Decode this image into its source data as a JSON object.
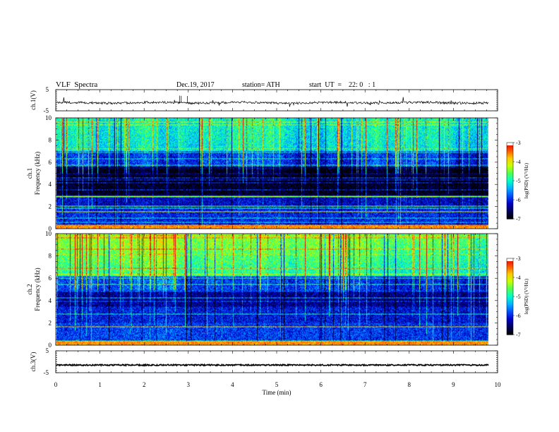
{
  "header": {
    "title": "VLF  Spectra",
    "date": "Dec.19, 2017",
    "station": "station= ATH",
    "start": "start  UT  =    22: 0   : 1"
  },
  "chart_data": {
    "type": "heatmap",
    "x_label": "Time  (min)",
    "x_range": [
      0,
      10
    ],
    "x_ticks": [
      "0",
      "1",
      "2",
      "3",
      "4",
      "5",
      "6",
      "7",
      "8",
      "9",
      "10"
    ],
    "data_end_min": 9.8,
    "panels": [
      {
        "id": "ch1-voltage",
        "kind": "line",
        "ylabel": "ch.1(V)",
        "ylim": [
          -5,
          5
        ],
        "y_ticks": [
          "5",
          "-5"
        ],
        "baseline_v": -1.2,
        "line_color": "#000000"
      },
      {
        "id": "ch1-spectrogram",
        "kind": "spectrogram",
        "ylabel_1": "ch.1",
        "ylabel_2": "Frequency  (kHz)",
        "ylim": [
          0,
          10
        ],
        "y_ticks": [
          "0",
          "2",
          "4",
          "6",
          "8",
          "10"
        ],
        "colorbar": {
          "range": [
            -7,
            -3
          ],
          "ticks": [
            "-3",
            "-4",
            "-5",
            "-6",
            "-7"
          ],
          "label": "log(PSD) (V²/Hz)"
        }
      },
      {
        "id": "ch2-spectrogram",
        "kind": "spectrogram",
        "ylabel_1": "ch.2",
        "ylabel_2": "Frequency  (kHz)",
        "ylim": [
          0,
          10
        ],
        "y_ticks": [
          "0",
          "2",
          "4",
          "6",
          "8",
          "10"
        ],
        "colorbar": {
          "range": [
            -7,
            -3
          ],
          "ticks": [
            "-3",
            "-4",
            "-5",
            "-6",
            "-7"
          ],
          "label": "log(PSD) (V²/Hz)"
        }
      },
      {
        "id": "ch3-voltage",
        "kind": "line",
        "ylabel": "ch.3(V)",
        "ylim": [
          -5,
          5
        ],
        "y_ticks": [
          "5",
          "-5"
        ],
        "baseline_v": -1.5,
        "line_color": "#000000"
      }
    ],
    "colormap": [
      "#000000",
      "#00005a",
      "#0000c8",
      "#0050ff",
      "#00b4ff",
      "#00ffc8",
      "#50ff50",
      "#c8ff00",
      "#ffc800",
      "#ff5000",
      "#dc0000",
      "#ffffff"
    ]
  }
}
